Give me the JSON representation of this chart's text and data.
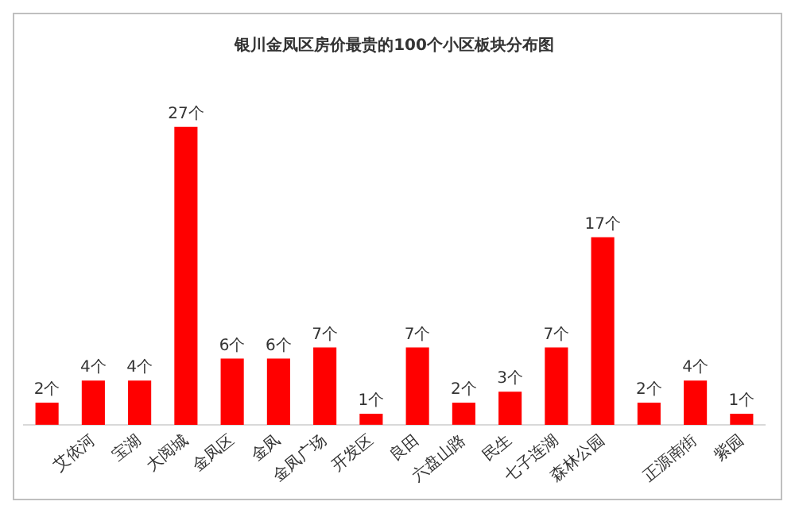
{
  "chart_data": {
    "type": "bar",
    "title": "银川金凤区房价最贵的100个小区板块分布图",
    "categories": [
      null,
      "艾依河",
      "宝湖",
      "大阅城",
      "金凤区",
      "金凤",
      "金凤广场",
      "开发区",
      "良田",
      "六盘山路",
      "民生",
      "七子连湖",
      "森林公园",
      null,
      "正源南街",
      "紫园"
    ],
    "values": [
      2,
      4,
      4,
      27,
      6,
      6,
      7,
      1,
      7,
      2,
      3,
      7,
      17,
      2,
      4,
      1
    ],
    "value_labels": [
      "2个",
      "4个",
      "4个",
      "27个",
      "6个",
      "6个",
      "7个",
      "1个",
      "7个",
      "2个",
      "3个",
      "7个",
      "17个",
      "2个",
      "4个",
      "1个"
    ],
    "color": "#ff0000",
    "grid": false,
    "legend": false
  }
}
